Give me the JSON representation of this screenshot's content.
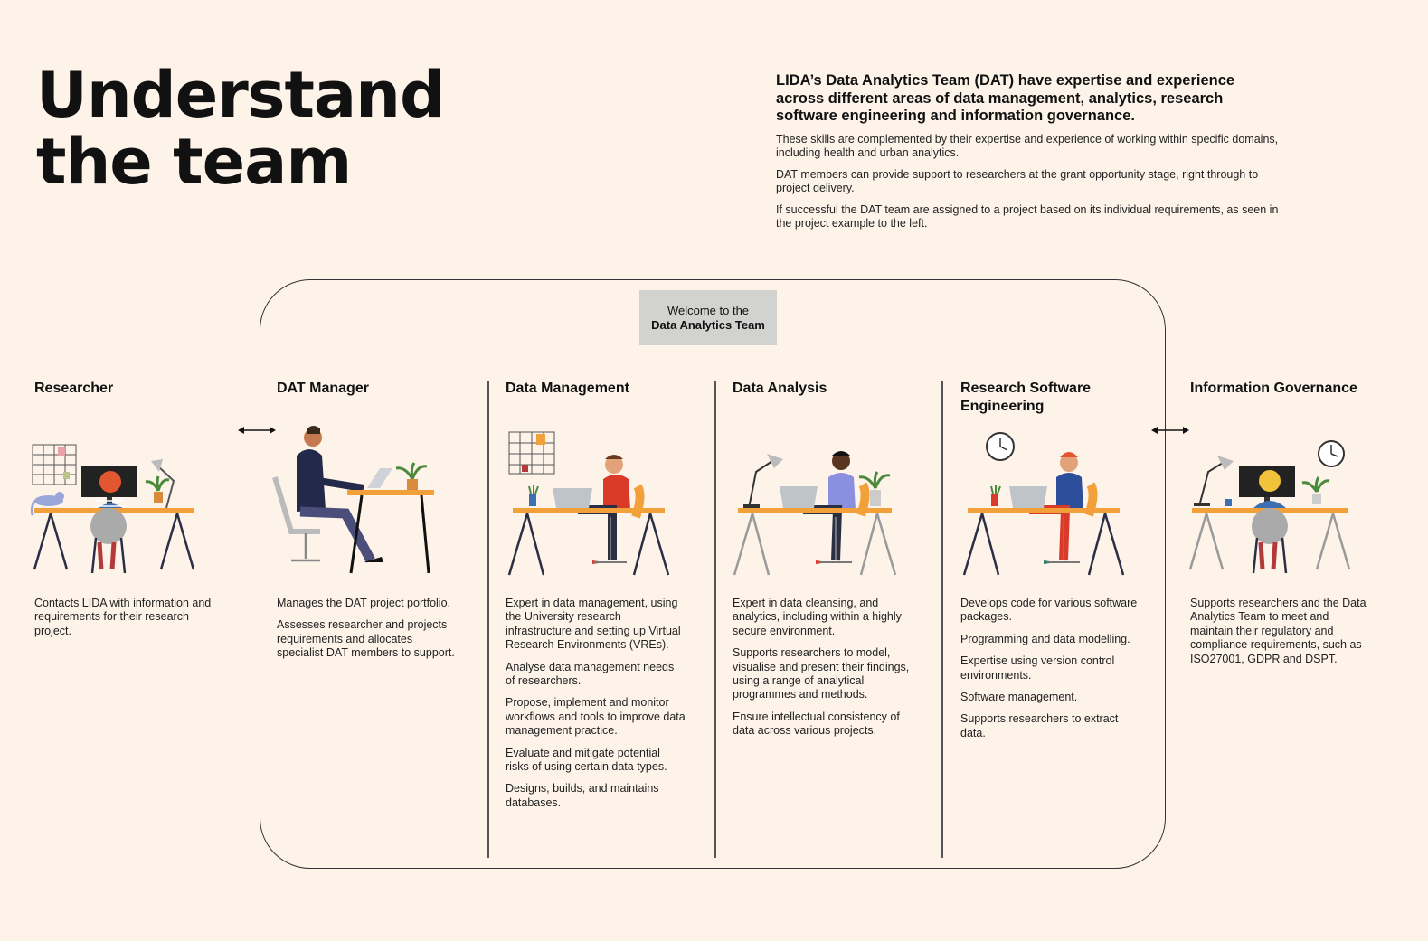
{
  "header": {
    "title_line1": "Understand",
    "title_line2": "the team"
  },
  "intro": {
    "lead": "LIDA’s Data Analytics Team (DAT) have expertise and experience across different areas of data management, analytics, research software engineering and information governance.",
    "paragraphs": [
      "These skills are complemented by their expertise and experience of working within specific domains, including health and urban analytics.",
      "DAT members can provide support to researchers at the grant opportunity stage, right through to project delivery.",
      "If successful the DAT team are assigned to a project based on its individual requirements, as seen in the project example to the left."
    ]
  },
  "welcome": {
    "line1": "Welcome to the",
    "line2": "Data Analytics Team"
  },
  "colors": {
    "background": "#fdf3e9",
    "desk": "#f2a03a",
    "legs_dark": "#2b2f45",
    "legs_grey": "#9a9a9a"
  },
  "columns": [
    {
      "title": "Researcher",
      "icon": "researcher-at-desk-icon",
      "paragraphs": [
        "Contacts LIDA with information and requirements for their research project."
      ]
    },
    {
      "title": "DAT Manager",
      "icon": "manager-at-laptop-icon",
      "paragraphs": [
        "Manages the DAT project portfolio.",
        "Assesses researcher and projects requirements and allocates specialist DAT members to support."
      ]
    },
    {
      "title": "Data Management",
      "icon": "data-manager-at-laptop-icon",
      "paragraphs": [
        "Expert in data management, using the University research infrastructure and setting up Virtual Research Environments (VREs).",
        "Analyse data management needs of researchers.",
        "Propose, implement and monitor workflows and tools to improve data management practice.",
        "Evaluate and mitigate potential risks of using certain data types.",
        "Designs, builds, and maintains databases."
      ]
    },
    {
      "title": "Data Analysis",
      "icon": "data-analyst-at-laptop-icon",
      "paragraphs": [
        "Expert in data cleansing, and analytics, including within a highly secure environment.",
        "Supports researchers to model, visualise and present their findings, using a range of analytical programmes and methods.",
        "Ensure intellectual consistency of data across various projects."
      ]
    },
    {
      "title": "Research Software Engineering",
      "icon": "software-engineer-at-laptop-icon",
      "paragraphs": [
        "Develops code for various software packages.",
        "Programming and data modelling.",
        "Expertise using version control environments.",
        "Software management.",
        "Supports researchers to extract data."
      ]
    },
    {
      "title": "Information Governance",
      "icon": "governance-officer-at-desk-icon",
      "paragraphs": [
        "Supports researchers and the Data Analytics Team to meet and maintain their regulatory and compliance requirements, such as ISO27001, GDPR and DSPT."
      ]
    }
  ]
}
